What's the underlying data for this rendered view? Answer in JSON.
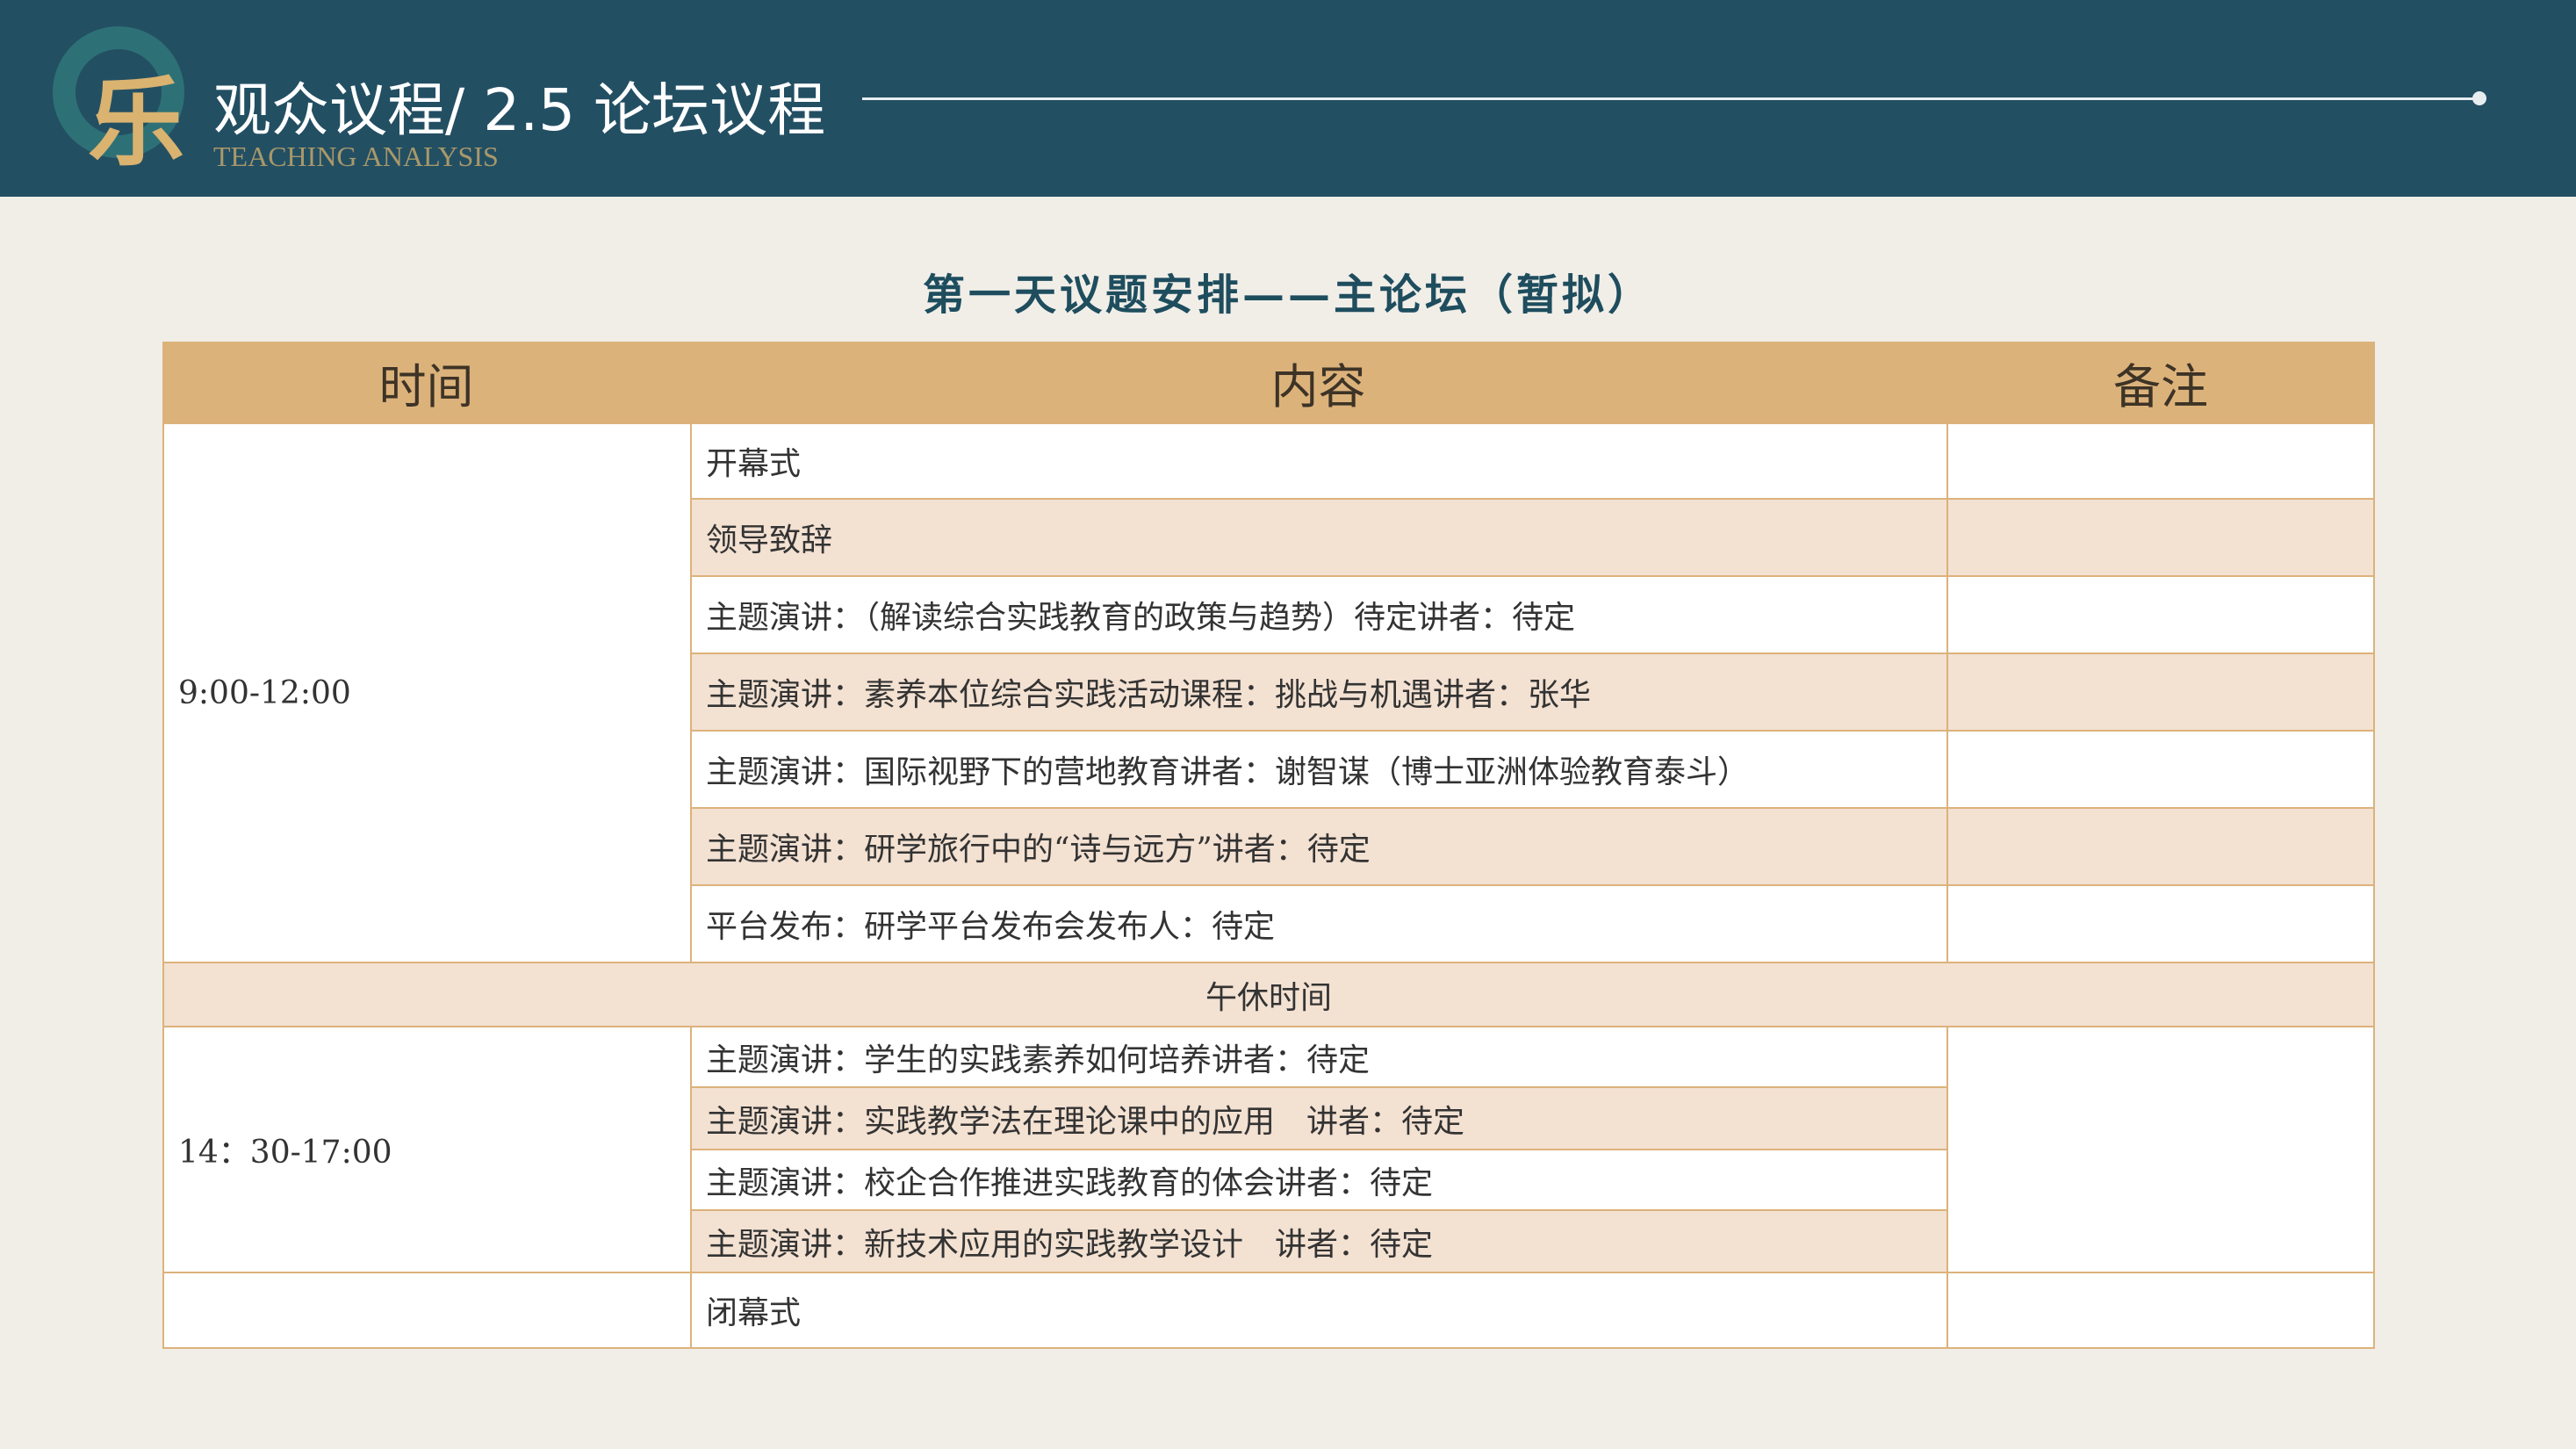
{
  "header": {
    "title": "观众议程/ 2.5 论坛议程",
    "subtitle": "TEACHING ANALYSIS",
    "logo_icon": "calligraphy-logo"
  },
  "table_title": "第一天议题安排——主论坛（暂拟）",
  "table": {
    "columns": [
      "时间",
      "内容",
      "备注"
    ],
    "morning_time": "9:00-12:00",
    "morning": [
      "开幕式",
      "领导致辞",
      "主题演讲：（解读综合实践教育的政策与趋势）待定讲者：待定",
      "主题演讲：素养本位综合实践活动课程：挑战与机遇讲者：张华",
      "主题演讲：国际视野下的营地教育讲者：谢智谋（博士亚洲体验教育泰斗）",
      "主题演讲：研学旅行中的“诗与远方”讲者：待定",
      "平台发布：研学平台发布会发布人：待定"
    ],
    "lunch": "午休时间",
    "afternoon_time": "14：30-17:00",
    "afternoon": [
      "主题演讲：学生的实践素养如何培养讲者：待定",
      "主题演讲：实践教学法在理论课中的应用　讲者：待定",
      "主题演讲：校企合作推进实践教育的体会讲者：待定",
      "主题演讲：新技术应用的实践教学设计　讲者：待定"
    ],
    "closing": "闭幕式"
  },
  "colors": {
    "header_bg": "#234f63",
    "table_header": "#dcb27b",
    "row_alt": "#f3e1d2",
    "title": "#1e4d5e"
  }
}
